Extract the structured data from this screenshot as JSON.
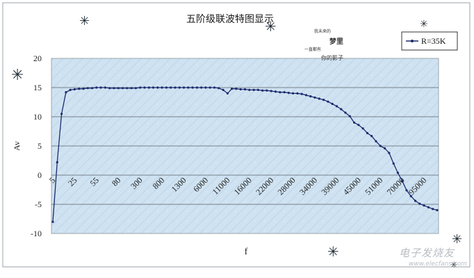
{
  "chart_data": {
    "type": "line",
    "title": "五阶级联波特图显示",
    "xlabel": "f",
    "ylabel": "Av",
    "ylim": [
      -10,
      20
    ],
    "yticks": [
      -10,
      -5,
      0,
      5,
      10,
      15,
      20
    ],
    "xtick_labels": [
      "5",
      "25",
      "55",
      "80",
      "300",
      "800",
      "1300",
      "6000",
      "11000",
      "16000",
      "22000",
      "28000",
      "34000",
      "39000",
      "45000",
      "51000",
      "70000",
      "95000"
    ],
    "grid": true,
    "legend_position": "top-right",
    "series": [
      {
        "name": "R=35K",
        "color": "#1a2a6c",
        "values": [
          -8.0,
          2.2,
          10.5,
          14.2,
          14.6,
          14.7,
          14.8,
          14.8,
          14.9,
          14.9,
          15.0,
          15.0,
          15.0,
          14.9,
          14.9,
          14.9,
          14.9,
          14.9,
          14.9,
          14.9,
          15.0,
          15.0,
          15.0,
          15.0,
          15.0,
          15.0,
          15.0,
          15.0,
          15.0,
          15.0,
          15.0,
          15.0,
          15.0,
          15.0,
          15.0,
          15.0,
          15.0,
          15.0,
          14.9,
          14.6,
          14.0,
          14.8,
          14.8,
          14.7,
          14.7,
          14.6,
          14.6,
          14.6,
          14.5,
          14.5,
          14.4,
          14.3,
          14.2,
          14.2,
          14.1,
          14.0,
          14.0,
          13.9,
          13.7,
          13.5,
          13.3,
          13.1,
          12.9,
          12.6,
          12.2,
          11.8,
          11.3,
          10.7,
          10.1,
          9.0,
          8.6,
          8.0,
          7.2,
          6.7,
          5.8,
          5.0,
          4.6,
          3.8,
          2.0,
          0.4,
          -1.0,
          -2.6,
          -3.6,
          -4.4,
          -4.9,
          -5.2,
          -5.5,
          -5.8,
          -6.0
        ]
      }
    ]
  },
  "decorations": {
    "handwriting_lines": [
      "我未来的",
      "梦里",
      "一直都有",
      "你的影子"
    ],
    "snowflake_glyph": "✳",
    "watermark_main": "电子发烧友",
    "watermark_url": "www.elecfans.com"
  }
}
